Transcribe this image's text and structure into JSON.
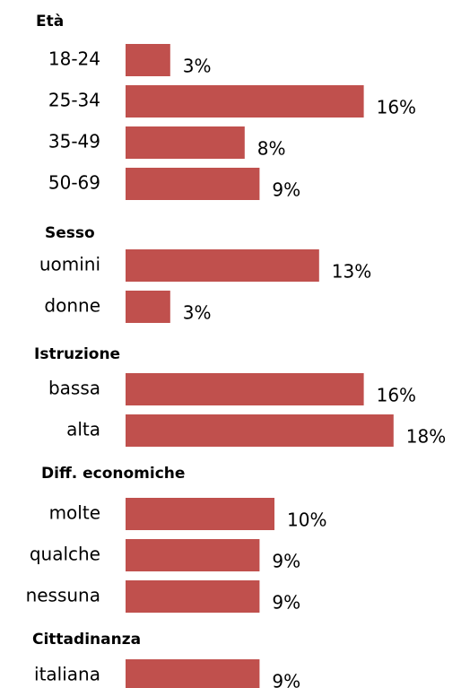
{
  "chart_data": {
    "type": "bar",
    "color": "#c0504d",
    "groups": [
      {
        "title": "Età",
        "categories": [
          "18-24",
          "25-34",
          "35-49",
          "50-69"
        ],
        "values": [
          3,
          16,
          8,
          9
        ],
        "value_labels": [
          "3%",
          "16%",
          "8%",
          "9%"
        ]
      },
      {
        "title": "Sesso",
        "categories": [
          "uomini",
          "donne"
        ],
        "values": [
          13,
          3
        ],
        "value_labels": [
          "13%",
          "3%"
        ]
      },
      {
        "title": "Istruzione",
        "categories": [
          "bassa",
          "alta"
        ],
        "values": [
          16,
          18
        ],
        "value_labels": [
          "16%",
          "18%"
        ]
      },
      {
        "title": "Diff. economiche",
        "categories": [
          "molte",
          "qualche",
          "nessuna"
        ],
        "values": [
          10,
          9,
          9
        ],
        "value_labels": [
          "10%",
          "9%",
          "9%"
        ]
      },
      {
        "title": "Cittadinanza",
        "categories": [
          "italiana"
        ],
        "values": [
          9
        ],
        "value_labels": [
          "9%"
        ]
      }
    ]
  }
}
